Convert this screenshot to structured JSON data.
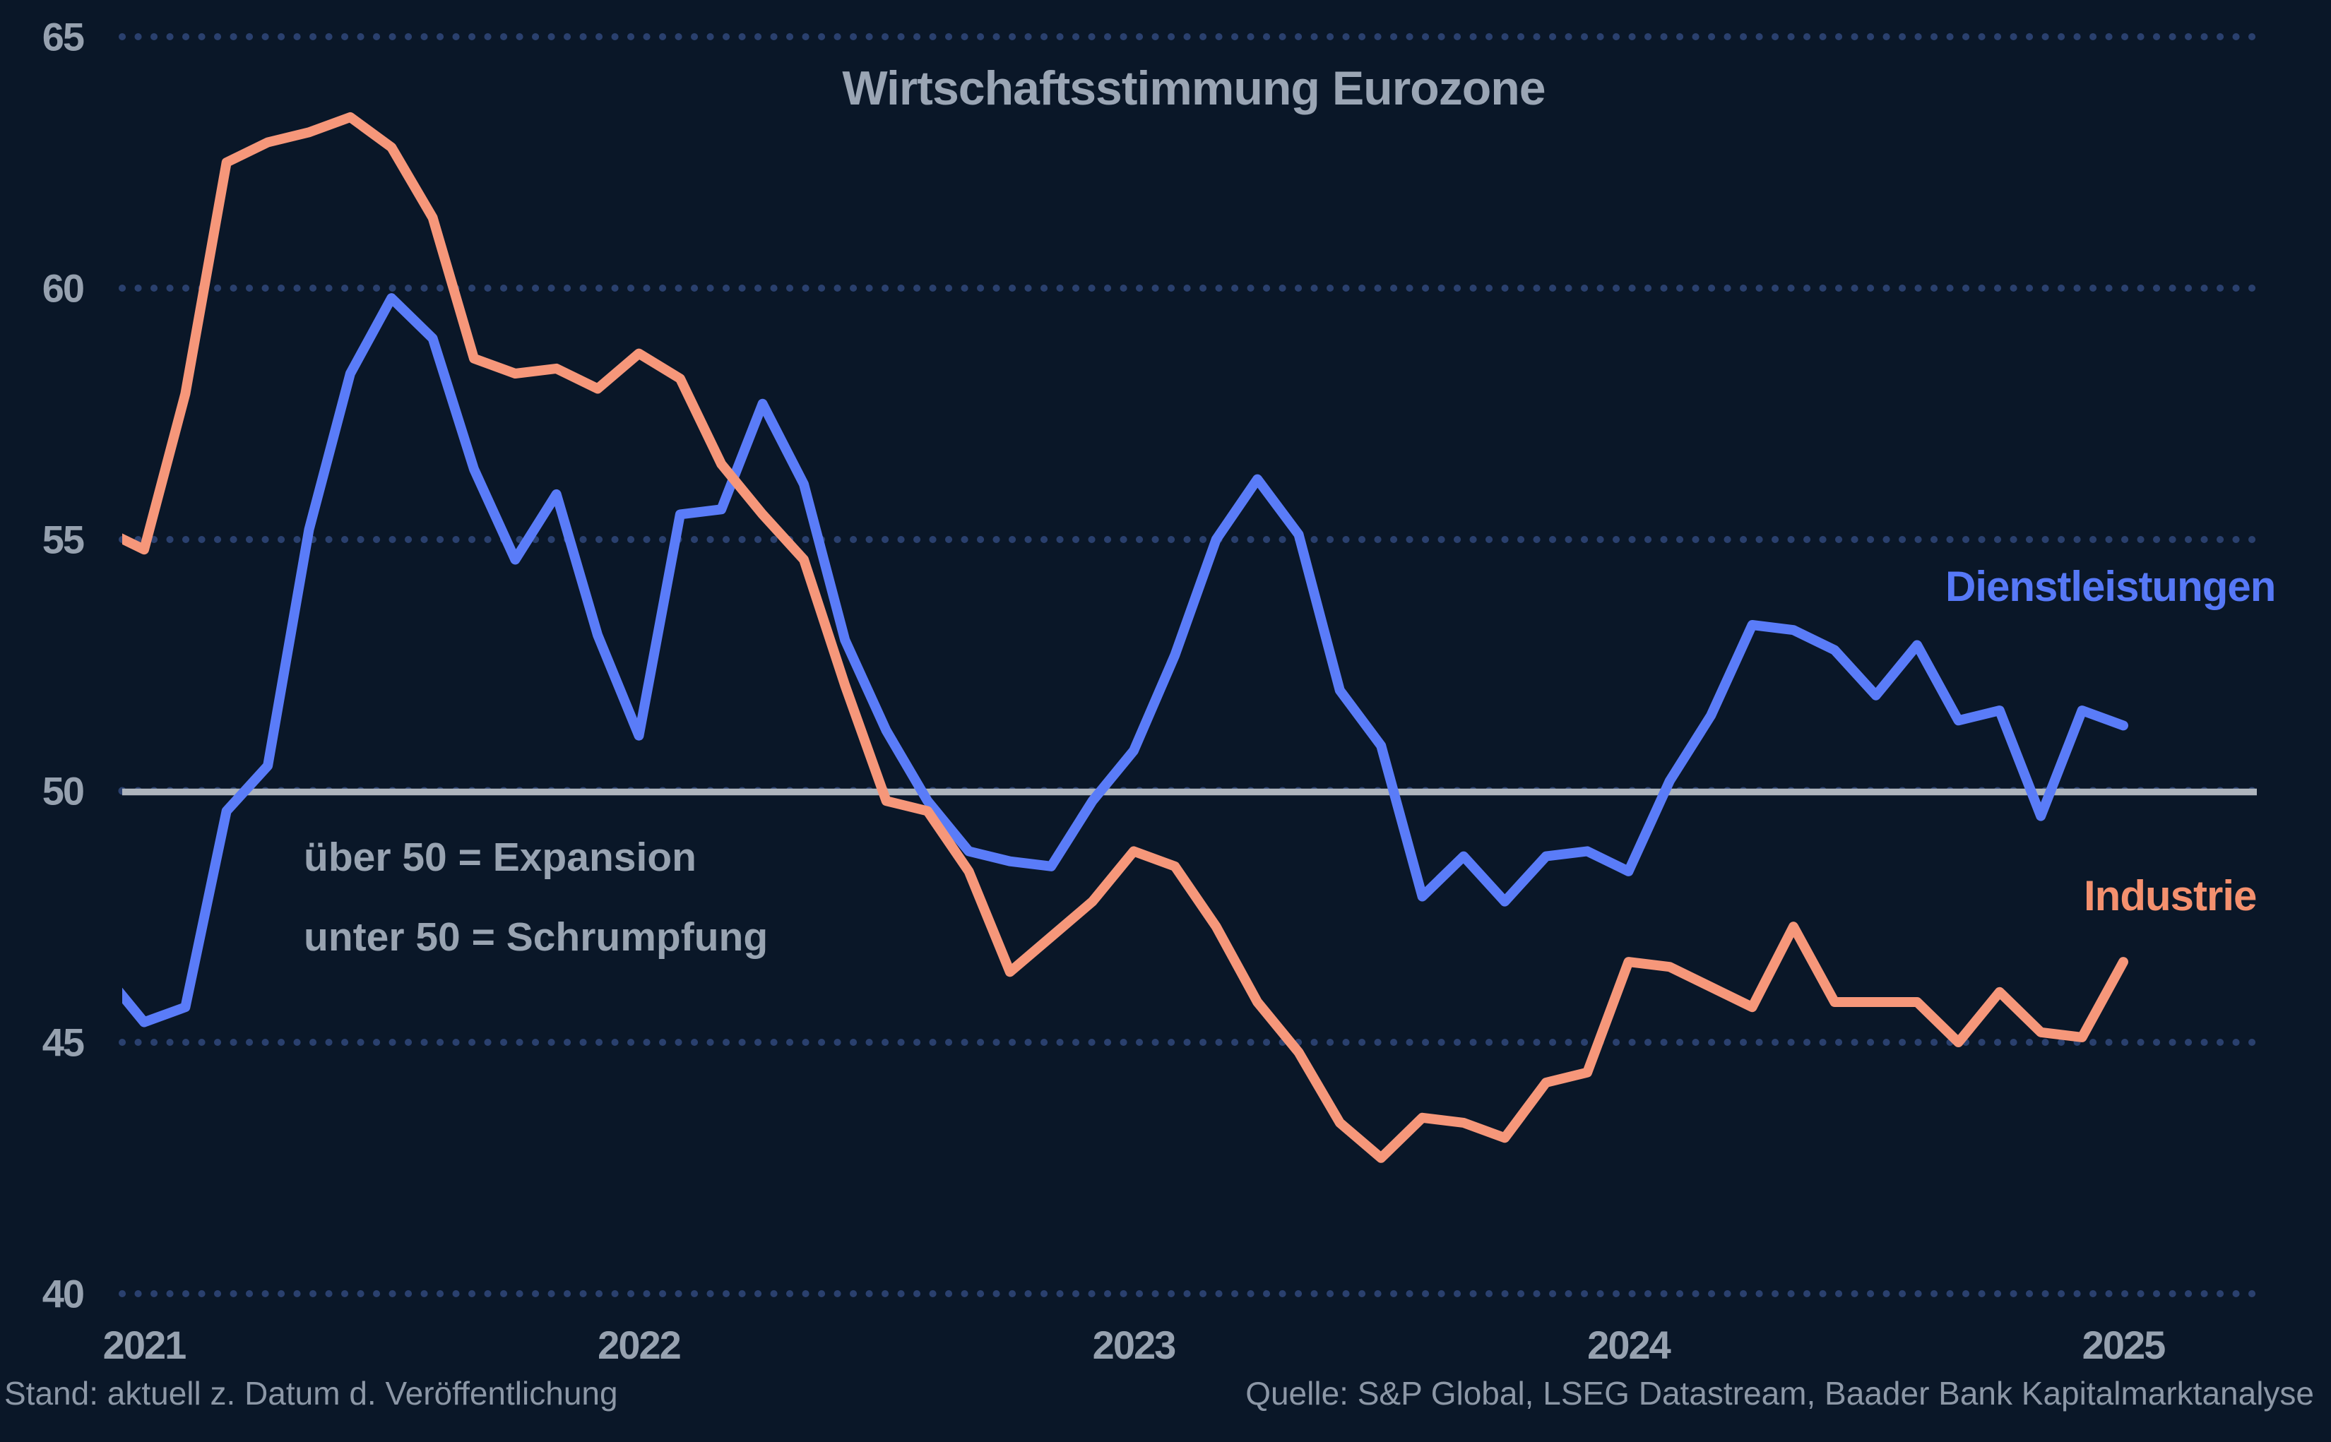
{
  "title": "Wirtschaftsstimmung Eurozone",
  "annotation": {
    "line1": "über 50 = Expansion",
    "line2": "unter 50 = Schrumpfung"
  },
  "legend": {
    "services": "Dienstleistungen",
    "industry": "Industrie"
  },
  "footer": {
    "left": "Stand: aktuell z. Datum d. Veröffentlichung",
    "right": "Quelle: S&P Global, LSEG Datastream, Baader Bank Kapitalmarktanalyse"
  },
  "colors": {
    "background": "#0A1728",
    "services_line": "#5A7CF8",
    "industry_line": "#F6977A",
    "grid_dots": "#2A406E",
    "reference_line": "#AEB5BD",
    "title_text": "#9AA5B4",
    "tick_text": "#96A1AF",
    "annotation_text": "#98A3B1",
    "footer_text": "#8C97A6"
  },
  "chart_data": {
    "type": "line",
    "title": "Wirtschaftsstimmung Eurozone",
    "xlabel": "",
    "ylabel": "",
    "x_interval": "monthly",
    "x_labels": [
      "2020-12",
      "2021-01",
      "2021-02",
      "2021-03",
      "2021-04",
      "2021-05",
      "2021-06",
      "2021-07",
      "2021-08",
      "2021-09",
      "2021-10",
      "2021-11",
      "2021-12",
      "2022-01",
      "2022-02",
      "2022-03",
      "2022-04",
      "2022-05",
      "2022-06",
      "2022-07",
      "2022-08",
      "2022-09",
      "2022-10",
      "2022-11",
      "2022-12",
      "2023-01",
      "2023-02",
      "2023-03",
      "2023-04",
      "2023-05",
      "2023-06",
      "2023-07",
      "2023-08",
      "2023-09",
      "2023-10",
      "2023-11",
      "2023-12",
      "2024-01",
      "2024-02",
      "2024-03",
      "2024-04",
      "2024-05",
      "2024-06",
      "2024-07",
      "2024-08",
      "2024-09",
      "2024-10",
      "2024-11",
      "2024-12",
      "2025-01"
    ],
    "x_tick_labels": [
      "2021",
      "2022",
      "2023",
      "2024",
      "2025"
    ],
    "y_ticks": [
      65,
      60,
      55,
      50,
      45,
      40
    ],
    "ylim": [
      38.7,
      65.7
    ],
    "grid": "dotted-horizontal",
    "reference_line_value": 50,
    "legend_position": "inline-right",
    "series": [
      {
        "name": "Dienstleistungen",
        "color": "#5A7CF8",
        "values": [
          46.4,
          45.4,
          45.7,
          49.6,
          50.5,
          55.2,
          58.3,
          59.8,
          59.0,
          56.4,
          54.6,
          55.9,
          53.1,
          51.1,
          55.5,
          55.6,
          57.7,
          56.1,
          53.0,
          51.2,
          49.8,
          48.8,
          48.6,
          48.5,
          49.8,
          50.8,
          52.7,
          55.0,
          56.2,
          55.1,
          52.0,
          50.9,
          47.9,
          48.7,
          47.8,
          48.7,
          48.8,
          48.4,
          50.2,
          51.5,
          53.3,
          53.2,
          52.8,
          51.9,
          52.9,
          51.4,
          51.6,
          49.5,
          51.6,
          51.3
        ]
      },
      {
        "name": "Industrie",
        "color": "#F6977A",
        "values": [
          55.2,
          54.8,
          57.9,
          62.5,
          62.9,
          63.1,
          63.4,
          62.8,
          61.4,
          58.6,
          58.3,
          58.4,
          58.0,
          58.7,
          58.2,
          56.5,
          55.5,
          54.6,
          52.1,
          49.8,
          49.6,
          48.4,
          46.4,
          47.1,
          47.8,
          48.8,
          48.5,
          47.3,
          45.8,
          44.8,
          43.4,
          42.7,
          43.5,
          43.4,
          43.1,
          44.2,
          44.4,
          46.6,
          46.5,
          46.1,
          45.7,
          47.3,
          45.8,
          45.8,
          45.8,
          45.0,
          46.0,
          45.2,
          45.1,
          46.6
        ]
      }
    ]
  }
}
